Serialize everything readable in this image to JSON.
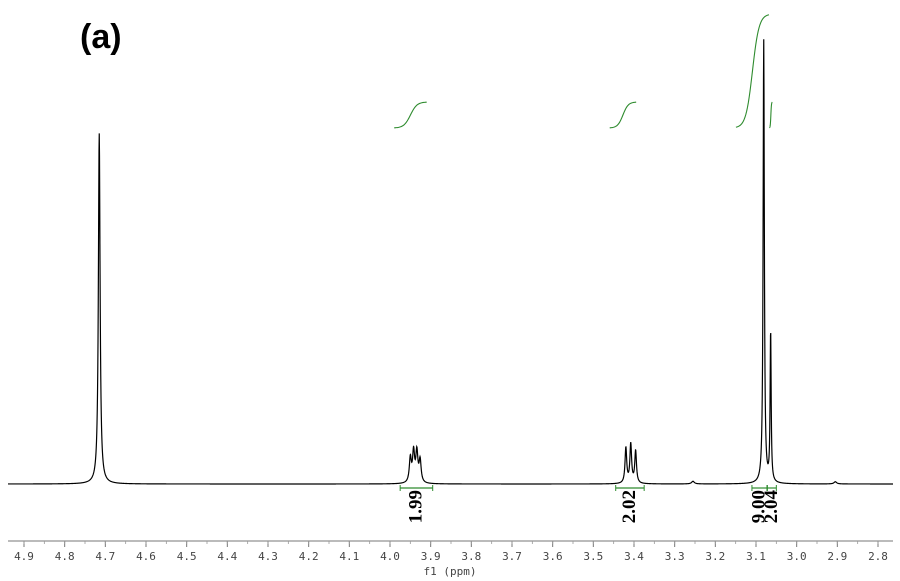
{
  "panel_label": "(a)",
  "chart_data": {
    "type": "line",
    "xlabel": "f1 (ppm)",
    "xlim": [
      4.9,
      2.8
    ],
    "x_reversed": true,
    "xticks": [
      "4.9",
      "4.8",
      "4.7",
      "4.6",
      "4.5",
      "4.4",
      "4.3",
      "4.2",
      "4.1",
      "4.0",
      "3.9",
      "3.8",
      "3.7",
      "3.6",
      "3.5",
      "3.4",
      "3.3",
      "3.2",
      "3.1",
      "3.0",
      "2.9",
      "2.8"
    ],
    "ylim": [
      0,
      1.0
    ],
    "grid": false,
    "line_color": "#000000",
    "integral_color": "#2e8b2e",
    "peaks": [
      {
        "center": 4.715,
        "height": 0.79,
        "width": 0.0025
      },
      {
        "center": 3.95,
        "height": 0.055,
        "width": 0.003
      },
      {
        "center": 3.942,
        "height": 0.068,
        "width": 0.003
      },
      {
        "center": 3.934,
        "height": 0.068,
        "width": 0.003
      },
      {
        "center": 3.926,
        "height": 0.05,
        "width": 0.003
      },
      {
        "center": 3.42,
        "height": 0.08,
        "width": 0.0025
      },
      {
        "center": 3.408,
        "height": 0.088,
        "width": 0.0025
      },
      {
        "center": 3.396,
        "height": 0.073,
        "width": 0.0025
      },
      {
        "center": 3.081,
        "height": 1.0,
        "width": 0.0018
      },
      {
        "center": 3.064,
        "height": 0.34,
        "width": 0.0015
      },
      {
        "center": 3.255,
        "height": 0.006,
        "width": 0.004
      },
      {
        "center": 2.905,
        "height": 0.005,
        "width": 0.004
      }
    ],
    "integrals": [
      {
        "label": "1.99",
        "from": 3.975,
        "to": 3.895
      },
      {
        "label": "2.02",
        "from": 3.445,
        "to": 3.375
      },
      {
        "label": "9.00",
        "from": 3.11,
        "to": 3.073
      },
      {
        "label": "2.04",
        "from": 3.072,
        "to": 3.05
      }
    ]
  }
}
